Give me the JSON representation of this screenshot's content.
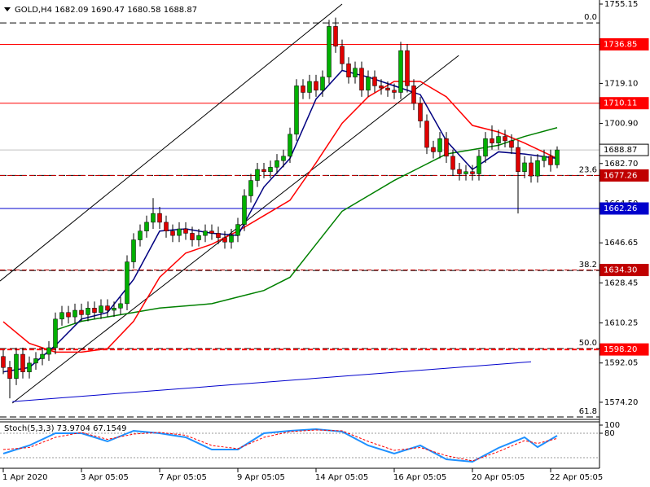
{
  "chart_data": [
    {
      "type": "candlestick",
      "title": "GOLD,H4  1682.09 1690.47 1680.58 1688.87",
      "categories": [
        "1 Apr 2020",
        null,
        null,
        null,
        null,
        null,
        null,
        null,
        null,
        null,
        null,
        null,
        "3 Apr 05:05",
        null,
        null,
        null,
        null,
        null,
        null,
        null,
        null,
        null,
        null,
        null,
        "7 Apr 05:05",
        null,
        null,
        null,
        null,
        null,
        null,
        null,
        null,
        null,
        null,
        null,
        "9 Apr 05:05",
        null,
        null,
        null,
        null,
        null,
        null,
        null,
        null,
        null,
        null,
        null,
        "14 Apr 05:05",
        null,
        null,
        null,
        null,
        null,
        null,
        null,
        null,
        null,
        null,
        null,
        "16 Apr 05:05",
        null,
        null,
        null,
        null,
        null,
        null,
        null,
        null,
        null,
        null,
        null,
        "20 Apr 05:05",
        null,
        null,
        null,
        null,
        null,
        null,
        null,
        null,
        null,
        null,
        null,
        "22 Apr 05:05",
        null
      ],
      "open": [
        1595,
        1590,
        1585,
        1596,
        1588,
        1592,
        1594,
        1596,
        1599,
        1612,
        1615,
        1613,
        1616,
        1614,
        1617,
        1615,
        1618,
        1616,
        1617,
        1619,
        1638,
        1648,
        1652,
        1656,
        1660,
        1656,
        1652,
        1650,
        1653,
        1651,
        1648,
        1650,
        1652,
        1651,
        1649,
        1647,
        1650,
        1655,
        1668,
        1675,
        1680,
        1679,
        1681,
        1684,
        1686,
        1696,
        1718,
        1715,
        1720,
        1716,
        1722,
        1745,
        1736,
        1728,
        1722,
        1726,
        1716,
        1722,
        1718,
        1717,
        1716,
        1715,
        1734,
        1718,
        1710,
        1702,
        1690,
        1688,
        1694,
        1686,
        1680,
        1678,
        1679,
        1678,
        1686,
        1694,
        1692,
        1695,
        1693,
        1690,
        1679,
        1683,
        1677,
        1684,
        1686,
        1682.09
      ],
      "high": [
        1598,
        1593,
        1599,
        1599,
        1595,
        1597,
        1599,
        1602,
        1615,
        1618,
        1618,
        1619,
        1619,
        1620,
        1620,
        1621,
        1621,
        1620,
        1622,
        1641,
        1651,
        1655,
        1659,
        1667,
        1663,
        1659,
        1655,
        1656,
        1656,
        1654,
        1653,
        1655,
        1655,
        1654,
        1652,
        1653,
        1658,
        1671,
        1678,
        1683,
        1683,
        1684,
        1687,
        1689,
        1699,
        1721,
        1721,
        1723,
        1723,
        1725,
        1748,
        1749,
        1739,
        1731,
        1729,
        1729,
        1725,
        1725,
        1721,
        1720,
        1719,
        1738,
        1737,
        1721,
        1713,
        1705,
        1693,
        1697,
        1697,
        1689,
        1683,
        1682,
        1682,
        1689,
        1697,
        1700,
        1698,
        1698,
        1696,
        1693,
        1686,
        1686,
        1687,
        1689,
        1689,
        1690.47
      ],
      "low": [
        1587,
        1576,
        1582,
        1585,
        1585,
        1589,
        1591,
        1593,
        1596,
        1609,
        1610,
        1610,
        1611,
        1611,
        1612,
        1612,
        1613,
        1613,
        1614,
        1616,
        1635,
        1645,
        1649,
        1653,
        1653,
        1649,
        1647,
        1647,
        1648,
        1645,
        1645,
        1647,
        1648,
        1646,
        1644,
        1644,
        1647,
        1652,
        1665,
        1672,
        1676,
        1676,
        1678,
        1681,
        1683,
        1693,
        1712,
        1712,
        1713,
        1713,
        1719,
        1733,
        1725,
        1719,
        1719,
        1713,
        1713,
        1715,
        1714,
        1713,
        1712,
        1712,
        1715,
        1707,
        1699,
        1687,
        1685,
        1685,
        1683,
        1677,
        1675,
        1675,
        1675,
        1675,
        1683,
        1689,
        1689,
        1690,
        1687,
        1660,
        1676,
        1674,
        1674,
        1681,
        1679,
        1680.58
      ],
      "close": [
        1590,
        1585,
        1596,
        1588,
        1592,
        1594,
        1596,
        1599,
        1612,
        1615,
        1613,
        1616,
        1614,
        1617,
        1615,
        1618,
        1616,
        1617,
        1619,
        1638,
        1648,
        1652,
        1656,
        1660,
        1656,
        1652,
        1650,
        1653,
        1651,
        1648,
        1650,
        1652,
        1651,
        1649,
        1647,
        1650,
        1655,
        1668,
        1675,
        1680,
        1679,
        1681,
        1684,
        1686,
        1696,
        1718,
        1715,
        1720,
        1716,
        1722,
        1745,
        1736,
        1728,
        1722,
        1726,
        1716,
        1722,
        1718,
        1717,
        1716,
        1715,
        1734,
        1718,
        1710,
        1702,
        1690,
        1688,
        1694,
        1686,
        1680,
        1678,
        1679,
        1678,
        1686,
        1694,
        1692,
        1695,
        1693,
        1690,
        1679,
        1683,
        1677,
        1684,
        1686,
        1682.09,
        1688.87
      ],
      "up_color": "#00b000",
      "down_color": "#e00000",
      "wick_color": "#000000",
      "ylim": [
        1567.15,
        1757.0
      ],
      "yticks": [
        1755.15,
        {
          "value": 1719.1,
          "label": "1719.10"
        },
        {
          "value": 1700.9,
          "label": "1700.90"
        },
        {
          "value": 1682.7,
          "label": "1682.70"
        },
        {
          "value": 1664.5,
          "label": "1664.50"
        },
        1646.65,
        1628.45,
        1610.25,
        1592.05,
        {
          "value": 1574.2,
          "label": "1574.20"
        }
      ],
      "ma": [
        {
          "color": "#008000",
          "x": [
            8,
            12,
            16,
            20,
            24,
            28,
            32,
            36,
            40,
            44,
            48,
            52,
            56,
            60,
            64,
            68,
            72,
            76,
            80,
            85
          ],
          "values": [
            1607,
            1611,
            1613,
            1615,
            1617,
            1618,
            1619,
            1622,
            1625,
            1631,
            1646,
            1661,
            1668,
            1675,
            1681,
            1687,
            1689,
            1691,
            1695,
            1699
          ]
        },
        {
          "color": "#ff0000",
          "x": [
            0,
            4,
            8,
            12,
            16,
            20,
            24,
            28,
            32,
            36,
            40,
            44,
            48,
            52,
            56,
            60,
            64,
            68,
            72,
            76,
            80,
            85
          ],
          "values": [
            1610.8,
            1601,
            1597,
            1597,
            1598.6,
            1611,
            1631,
            1642,
            1646,
            1652,
            1659,
            1666,
            1683,
            1701,
            1713,
            1720,
            1720,
            1713,
            1700,
            1697,
            1692,
            1685
          ]
        },
        {
          "color": "#000080",
          "x": [
            0,
            4,
            8,
            12,
            16,
            20,
            24,
            28,
            32,
            36,
            40,
            44,
            48,
            52,
            56,
            60,
            64,
            68,
            72,
            76,
            80,
            85
          ],
          "values": [
            1588,
            1590,
            1600,
            1612,
            1615,
            1630,
            1652,
            1653,
            1651,
            1650,
            1672,
            1685,
            1712,
            1725,
            1722,
            1718,
            1714,
            1693,
            1680,
            1688,
            1687,
            1685
          ]
        }
      ],
      "trendlines": [
        {
          "color": "#000000",
          "x": [
            -0.5,
            52
          ],
          "y": [
            1629.3,
            1755.15
          ]
        },
        {
          "color": "#000000",
          "x": [
            1.4,
            69.9
          ],
          "y": [
            1573.8,
            1731.8
          ]
        },
        {
          "color": "#0000cc",
          "x": [
            1.4,
            81
          ],
          "y": [
            1574.5,
            1592.6
          ]
        }
      ],
      "fib_levels": [
        {
          "ratio": {
            "value": 0,
            "label": "0.0"
          },
          "price": 1746.6
        },
        {
          "ratio": 23.6,
          "price": 1677.3
        },
        {
          "ratio": 38.2,
          "price": 1634.1
        },
        {
          "ratio": {
            "value": 50,
            "label": "50.0"
          },
          "price": 1598.6
        },
        {
          "ratio": 61.8,
          "price": 1567.5
        }
      ],
      "price_lines": [
        {
          "price": 1736.85,
          "color": "#ff0000"
        },
        {
          "price": 1710.11,
          "color": "#ff0000"
        },
        {
          "price": 1688.87,
          "color": "#c0c0c0",
          "label_fill": "#ffffff",
          "label_text": "#000000"
        },
        {
          "price": 1677.26,
          "color": "#c00000",
          "dash": true
        },
        {
          "price": 1662.26,
          "color": "#0000cc"
        },
        {
          "price": 1634.3,
          "label": "1634.30",
          "color": "#c00000",
          "dash": true
        },
        {
          "price": 1598.2,
          "label": "1598.20",
          "color": "#ff0000",
          "dash": true,
          "width": 2
        }
      ]
    },
    {
      "type": "line",
      "title": "Stoch(5,3,3) 73.9704 67.1549",
      "ylim": [
        0,
        100
      ],
      "yticks": [
        100,
        80
      ],
      "levels": [
        80,
        20
      ],
      "series": [
        {
          "color": "#1e90ff",
          "x": [
            0,
            4,
            8,
            12,
            16,
            20,
            24,
            28,
            32,
            36,
            40,
            44,
            48,
            52,
            56,
            60,
            64,
            68,
            72,
            76,
            80,
            82,
            85
          ],
          "values": [
            30,
            50,
            80,
            80,
            60,
            86,
            80,
            70,
            40,
            40,
            80,
            86,
            90,
            84,
            50,
            30,
            50,
            16,
            10,
            44,
            70,
            46,
            73.9704
          ]
        },
        {
          "color": "#ff0000",
          "dash": true,
          "x": [
            0,
            4,
            8,
            12,
            16,
            20,
            24,
            28,
            32,
            36,
            40,
            44,
            48,
            52,
            56,
            60,
            64,
            68,
            72,
            76,
            80,
            82,
            85
          ],
          "values": [
            40,
            45,
            70,
            82,
            65,
            78,
            82,
            75,
            50,
            42,
            70,
            84,
            88,
            86,
            60,
            38,
            45,
            25,
            12,
            35,
            62,
            55,
            67.1549
          ]
        }
      ]
    }
  ]
}
